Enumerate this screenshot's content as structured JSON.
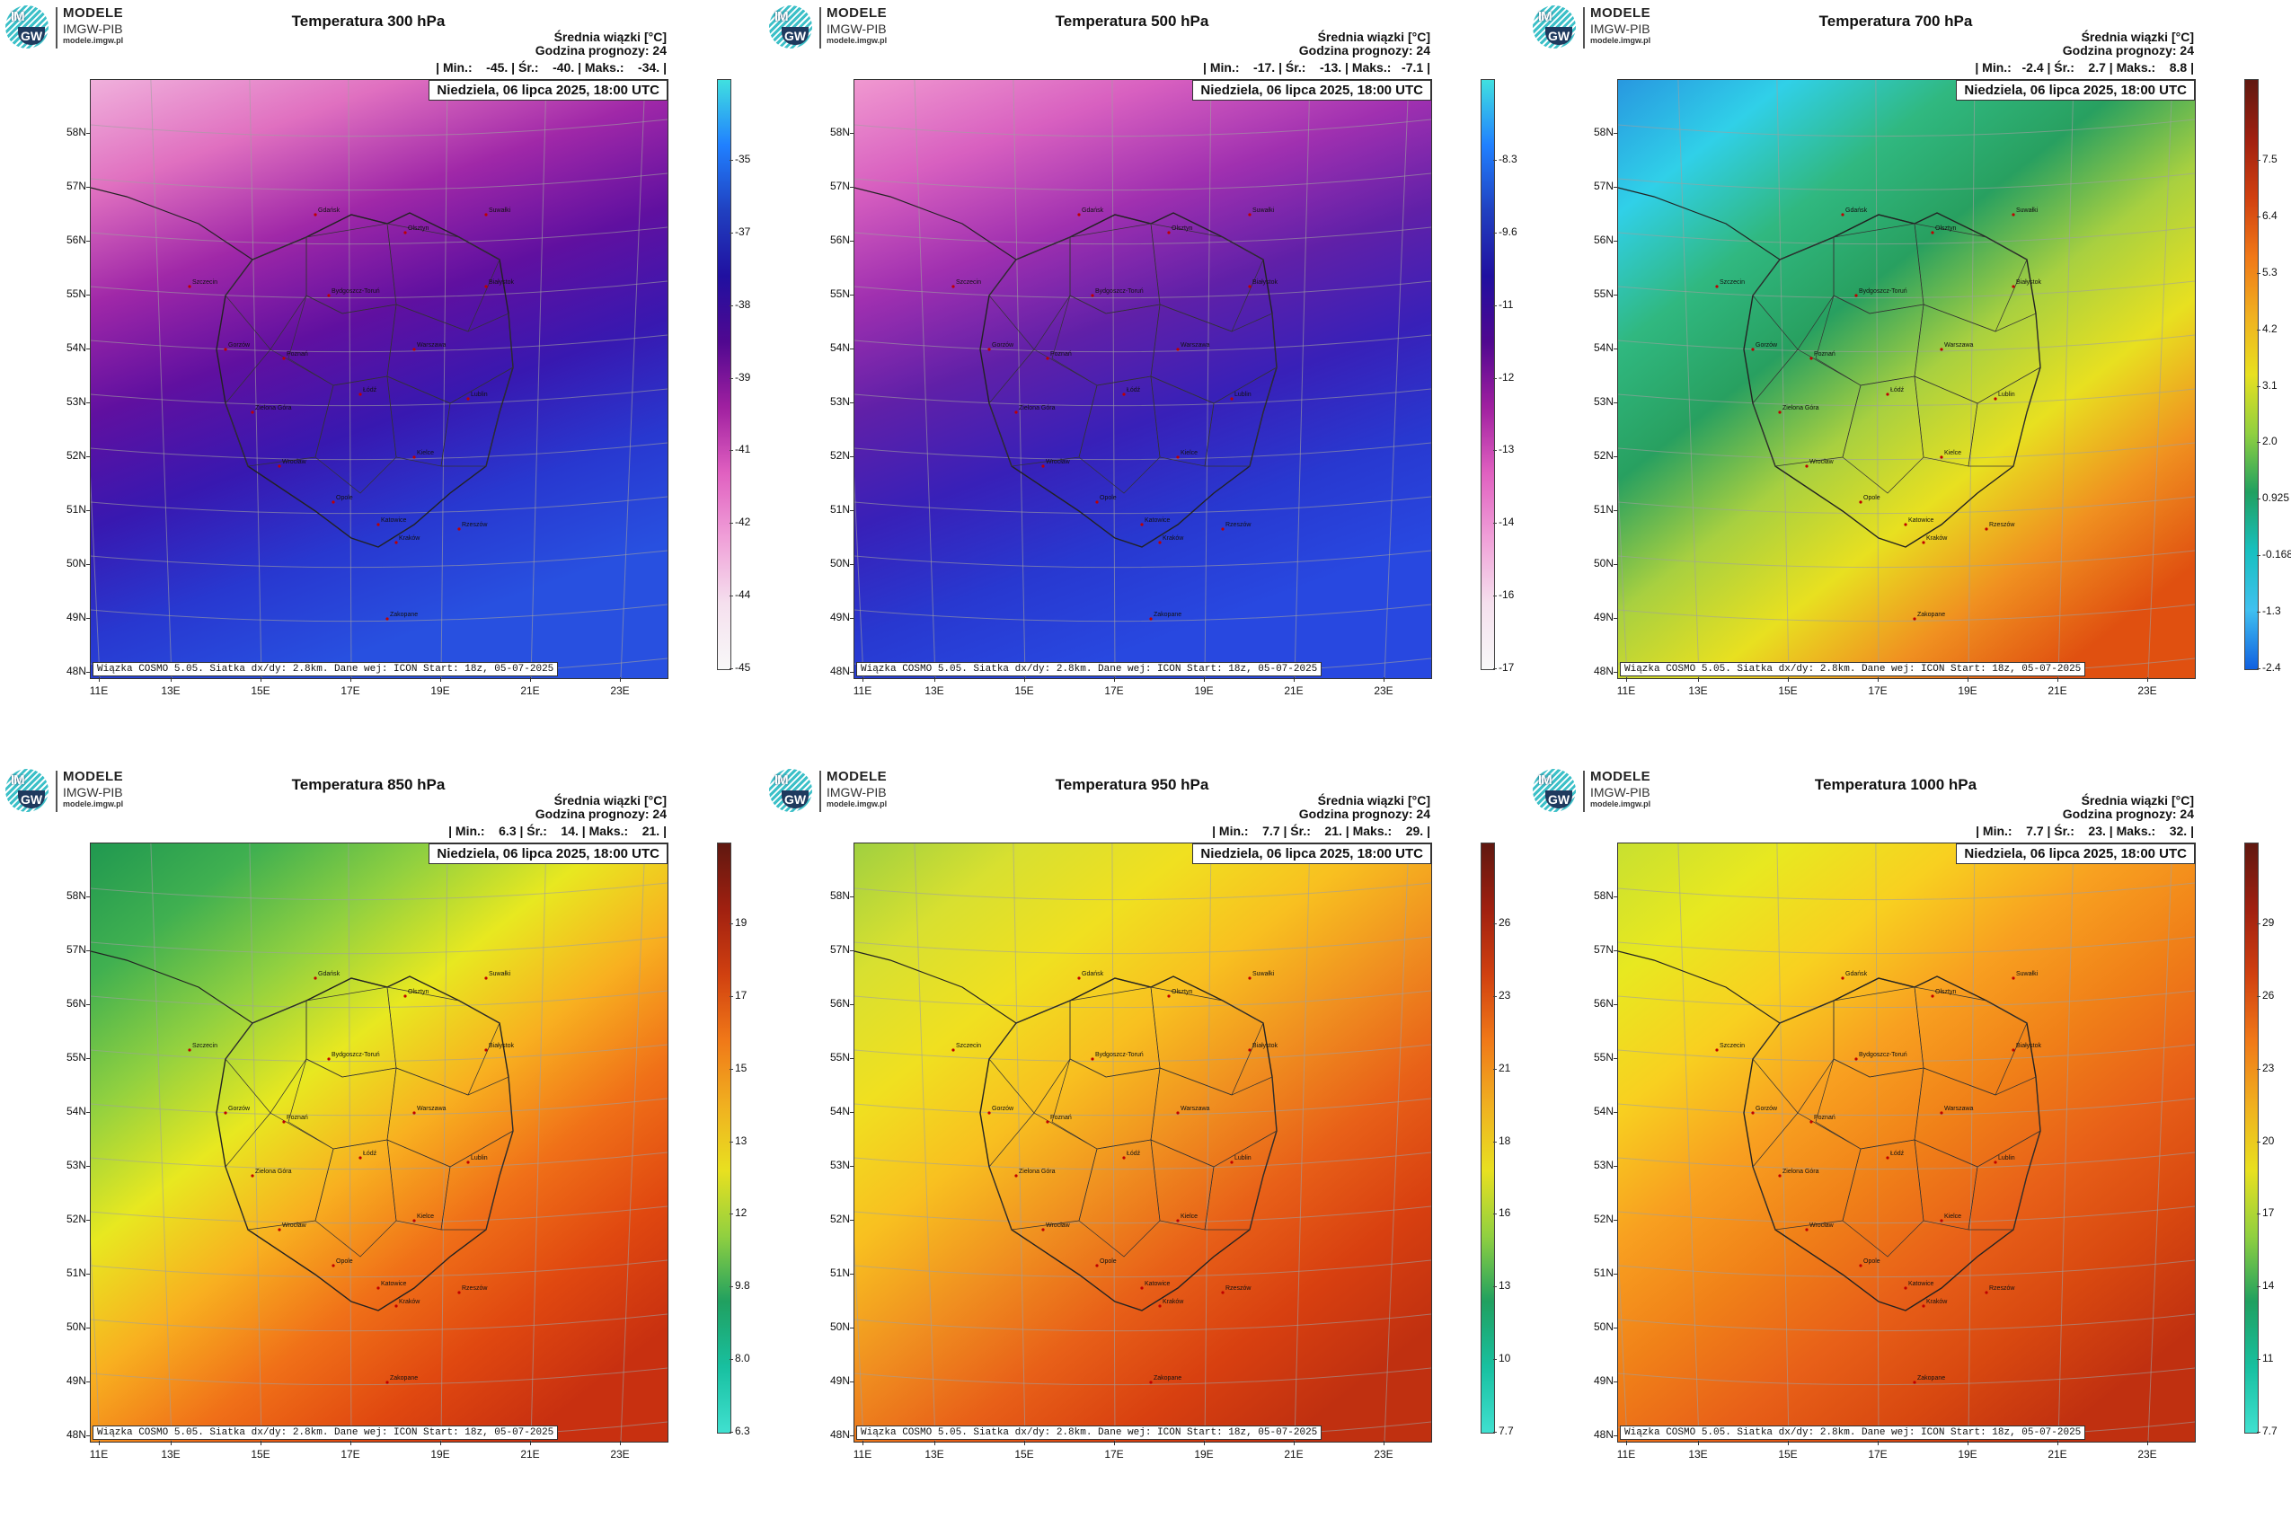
{
  "logo": {
    "line1": "MODELE",
    "line2": "IMGW-PIB",
    "line3": "modele.imgw.pl",
    "mark_top": "IM",
    "mark_bottom": "GW"
  },
  "subtitle": "Średnia wiązki [°C]",
  "forecast_hour": "Godzina prognozy: 24",
  "date_label": "Niedziela, 06 lipca 2025, 18:00 UTC",
  "footer": "Wiązka COSMO 5.05. Siatka dx/dy: 2.8km. Dane wej: ICON Start: 18z, 05-07-2025",
  "lat_labels": [
    "58N",
    "57N",
    "56N",
    "55N",
    "54N",
    "53N",
    "52N",
    "51N",
    "50N",
    "49N",
    "48N"
  ],
  "lon_labels": [
    "11E",
    "13E",
    "15E",
    "17E",
    "19E",
    "21E",
    "23E"
  ],
  "cities": [
    "Gdańsk",
    "Olsztyn",
    "Suwałki",
    "Szczecin",
    "Białystok",
    "Bydgoszcz-Toruń",
    "Gorzów",
    "Poznań",
    "Warszawa",
    "Zielona Góra",
    "Łódź",
    "Lublin",
    "Wrocław",
    "Kielce",
    "Opole",
    "Katowice",
    "Rzeszów",
    "Kraków",
    "Zakopane"
  ],
  "panels": [
    {
      "title": "Temperatura 300 hPa",
      "stats": "| Min.:    -45. | Śr.:    -40. | Maks.:    -34. |",
      "colorbar_labels": [
        "-35",
        "-37",
        "-38",
        "-39",
        "-41",
        "-42",
        "-44",
        "-45"
      ],
      "colorbar_colors": [
        "#40e0e0",
        "#2080ff",
        "#2040c0",
        "#2010a0",
        "#500890",
        "#a020a0",
        "#e060c0",
        "#f0a0d8",
        "#f5e0ee",
        "#f8f8f8"
      ],
      "map_colors": [
        "#f0b0dc",
        "#e070c0",
        "#a028a8",
        "#6010a0",
        "#3818b0",
        "#2838d0",
        "#2850e0"
      ]
    },
    {
      "title": "Temperatura 500 hPa",
      "stats": "| Min.:    -17. | Śr.:    -13. | Maks.:   -7.1 |",
      "colorbar_labels": [
        "-8.3",
        "-9.6",
        "-11",
        "-12",
        "-13",
        "-14",
        "-16",
        "-17"
      ],
      "colorbar_colors": [
        "#40e0e0",
        "#2080ff",
        "#2040c0",
        "#2010a0",
        "#500890",
        "#a020a0",
        "#e060c0",
        "#f0a0d8",
        "#f5e0ee",
        "#f8f8f8"
      ],
      "map_colors": [
        "#f098d0",
        "#d860c0",
        "#a030b0",
        "#6020a8",
        "#3820b8",
        "#2838d0",
        "#2848e0"
      ]
    },
    {
      "title": "Temperatura 700 hPa",
      "stats": "| Min.:   -2.4 | Śr.:    2.7 | Maks.:    8.8 |",
      "colorbar_labels": [
        "7.5",
        "6.4",
        "5.3",
        "4.2",
        "3.1",
        "2.0",
        "0.925",
        "-0.168",
        "-1.3",
        "-2.4"
      ],
      "colorbar_colors": [
        "#601810",
        "#a02010",
        "#d04010",
        "#f07818",
        "#f0b020",
        "#e8e020",
        "#90d040",
        "#20a060",
        "#18c0c0",
        "#40c0f0",
        "#1060e0"
      ],
      "map_colors": [
        "#2898e0",
        "#30d0e8",
        "#30b880",
        "#28a060",
        "#a8d040",
        "#e8e020",
        "#f09020",
        "#e05010"
      ]
    },
    {
      "title": "Temperatura 850 hPa",
      "stats": "| Min.:    6.3 | Śr.:    14. | Maks.:    21. |",
      "colorbar_labels": [
        "19",
        "17",
        "15",
        "13",
        "12",
        "9.8",
        "8.0",
        "6.3"
      ],
      "colorbar_colors": [
        "#601810",
        "#a02010",
        "#d04010",
        "#f07818",
        "#f0b020",
        "#e8e020",
        "#90d040",
        "#20a060",
        "#18c0a0",
        "#40e0d0"
      ],
      "map_colors": [
        "#209850",
        "#40b050",
        "#90d040",
        "#e8e820",
        "#f8b020",
        "#f07018",
        "#e04810",
        "#c83010"
      ]
    },
    {
      "title": "Temperatura 950 hPa",
      "stats": "| Min.:    7.7 | Śr.:    21. | Maks.:    29. |",
      "colorbar_labels": [
        "26",
        "23",
        "21",
        "18",
        "16",
        "13",
        "10",
        "7.7"
      ],
      "colorbar_colors": [
        "#601810",
        "#a02010",
        "#d04010",
        "#f07818",
        "#f0b020",
        "#e8e020",
        "#90d040",
        "#20a060",
        "#18c0a0",
        "#40e0d0"
      ],
      "map_colors": [
        "#a0d040",
        "#d8e030",
        "#f0e020",
        "#f8c020",
        "#f09020",
        "#e86018",
        "#d84010",
        "#c03010"
      ]
    },
    {
      "title": "Temperatura 1000 hPa",
      "stats": "| Min.:    7.7 | Śr.:    23. | Maks.:    32. |",
      "colorbar_labels": [
        "29",
        "26",
        "23",
        "20",
        "17",
        "14",
        "11",
        "7.7"
      ],
      "colorbar_colors": [
        "#601810",
        "#a02010",
        "#d04010",
        "#f07818",
        "#f0b020",
        "#e8e020",
        "#90d040",
        "#20a060",
        "#18c0a0",
        "#40e0d0"
      ],
      "map_colors": [
        "#c8e030",
        "#e8e820",
        "#f8d020",
        "#f8a020",
        "#f08018",
        "#e86018",
        "#d84810",
        "#c03010"
      ]
    }
  ]
}
